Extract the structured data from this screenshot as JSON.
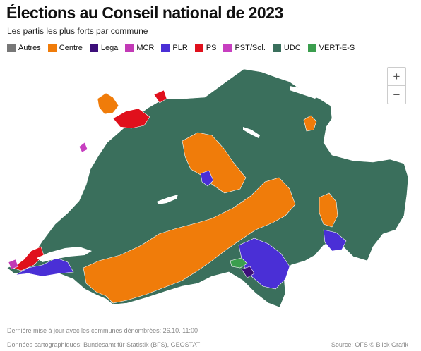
{
  "title": "Élections au Conseil national de 2023",
  "subtitle": "Les partis les plus forts par commune",
  "legend": [
    {
      "label": "Autres",
      "color": "#777777"
    },
    {
      "label": "Centre",
      "color": "#f07c0a"
    },
    {
      "label": "Lega",
      "color": "#3d0f7a"
    },
    {
      "label": "MCR",
      "color": "#c23ab6"
    },
    {
      "label": "PLR",
      "color": "#4a2fd6"
    },
    {
      "label": "PS",
      "color": "#e0101c"
    },
    {
      "label": "PST/Sol.",
      "color": "#c73fc0"
    },
    {
      "label": "UDC",
      "color": "#3a6f5c"
    },
    {
      "label": "VERT-E-S",
      "color": "#3b9e4e"
    }
  ],
  "zoom": {
    "in_label": "+",
    "out_label": "−"
  },
  "footer": {
    "updated": "Dernière mise à jour avec les communes dénombrées: 26.10. 11:00",
    "cartography": "Données cartographiques: Bundesamt für Statistik (BFS), GEOSTAT",
    "source": "Source: OFS © Blick Grafik"
  }
}
